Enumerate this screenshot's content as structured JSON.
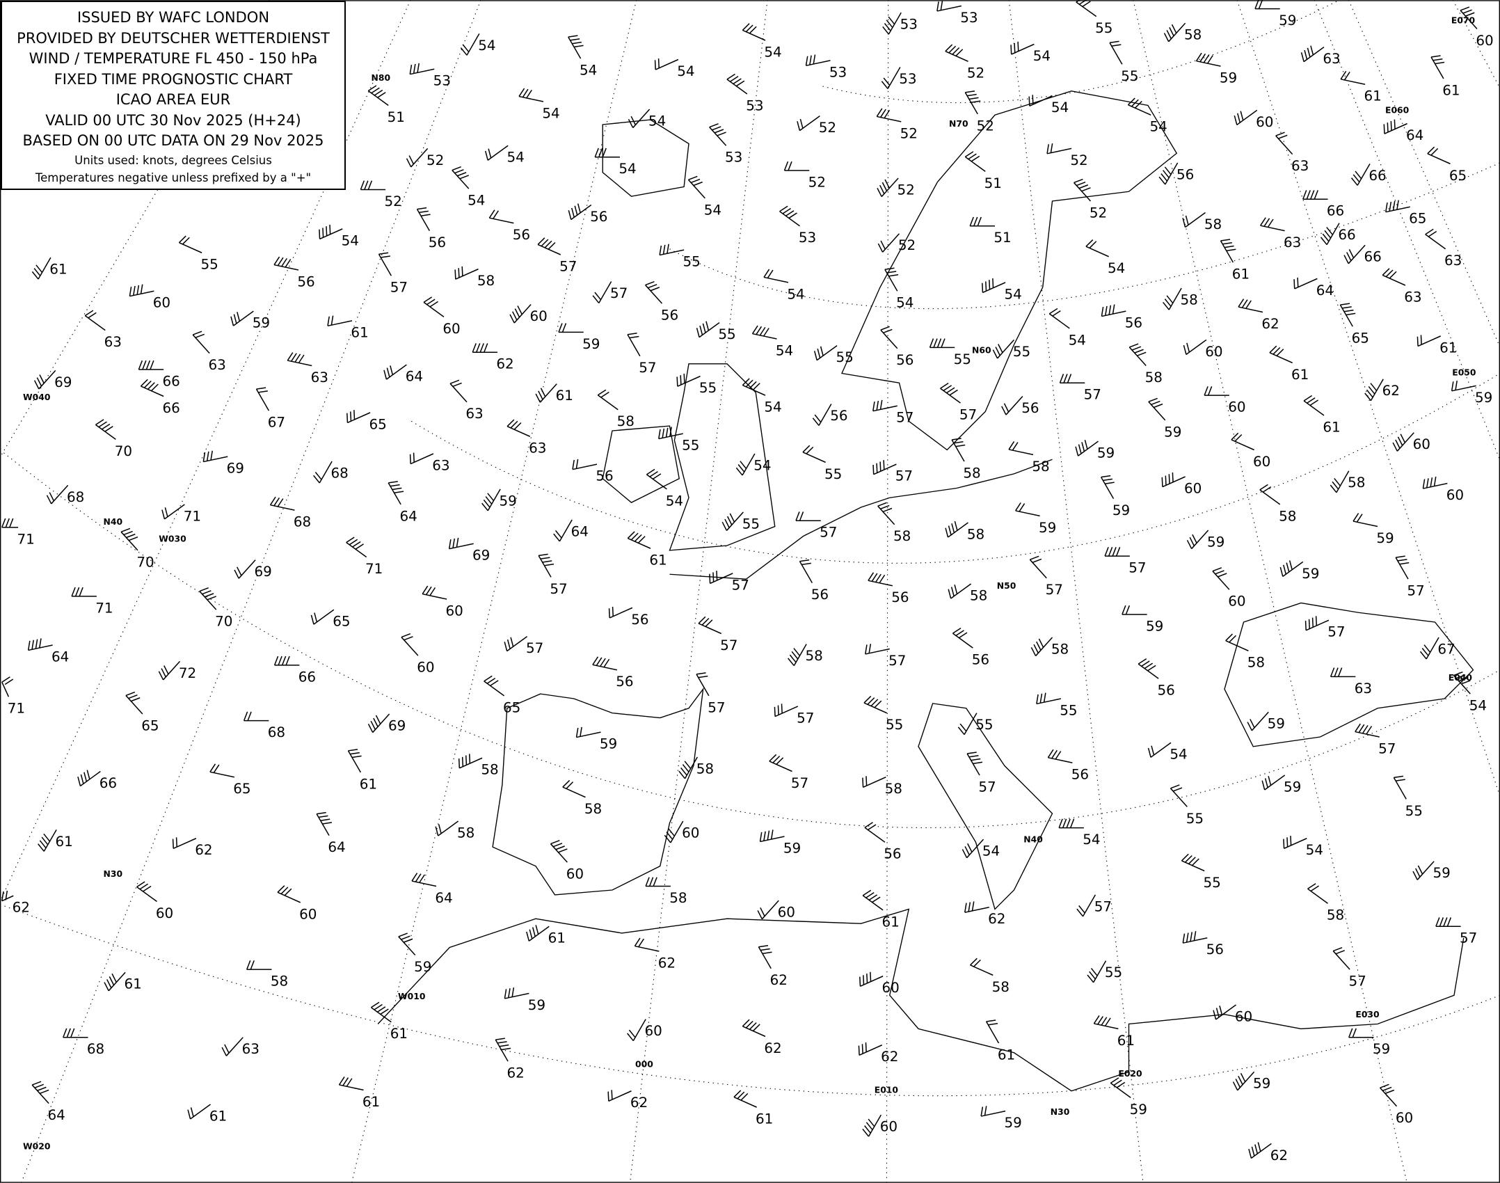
{
  "legend": {
    "lines": [
      "ISSUED BY WAFC LONDON",
      "PROVIDED BY DEUTSCHER WETTERDIENST",
      "WIND / TEMPERATURE FL 450 - 150 hPa",
      "FIXED TIME PROGNOSTIC CHART",
      "ICAO AREA EUR",
      "VALID 00 UTC 30 Nov 2025 (H+24)",
      "BASED ON 00 UTC DATA ON 29 Nov 2025"
    ],
    "units": "Units used: knots, degrees Celsius",
    "note": "Temperatures negative unless prefixed by a \"+\""
  },
  "grid_labels": [
    "W040",
    "N40",
    "W030",
    "N30",
    "W020",
    "W010",
    "000",
    "E010",
    "E020",
    "N30",
    "E030",
    "N50",
    "N60",
    "N70",
    "N40",
    "E040",
    "E050",
    "E060",
    "E070",
    "N80"
  ],
  "temperatures": [
    54,
    53,
    51,
    52,
    52,
    54,
    54,
    54,
    54,
    54,
    54,
    53,
    53,
    55,
    58,
    59,
    60,
    63,
    61,
    61,
    64,
    65,
    66,
    65,
    63,
    66,
    66,
    63,
    60,
    59,
    55,
    54,
    52,
    53,
    53,
    53,
    54,
    54,
    53,
    52,
    52,
    52,
    54,
    54,
    56,
    52,
    51,
    52,
    52,
    54,
    56,
    56,
    56,
    54,
    55,
    61,
    60,
    63,
    69,
    66,
    63,
    59,
    56,
    57,
    58,
    57,
    57,
    55,
    53,
    52,
    51,
    52,
    58,
    63,
    61,
    64,
    63,
    66,
    61,
    60,
    60,
    59,
    56,
    55,
    54,
    54,
    54,
    54,
    58,
    56,
    54,
    55,
    55,
    56,
    55,
    54,
    57,
    55,
    54,
    56,
    57,
    57,
    56,
    57,
    58,
    60,
    62,
    65,
    61,
    61,
    62,
    59,
    61,
    60,
    60,
    59,
    59,
    58,
    58,
    57,
    55,
    54,
    55,
    58,
    61,
    62,
    63,
    64,
    63,
    67,
    65,
    66,
    68,
    69,
    70,
    68,
    71,
    70,
    71,
    68,
    64,
    63,
    63,
    59,
    56,
    54,
    55,
    57,
    58,
    58,
    59,
    59,
    60,
    60,
    58,
    60,
    58,
    59,
    57,
    57,
    58,
    56,
    56,
    57,
    61,
    64,
    69,
    71,
    69,
    71,
    70,
    65,
    60,
    57,
    56,
    57,
    58,
    57,
    56,
    58,
    59,
    60,
    59,
    59,
    57,
    57,
    58,
    67,
    64,
    71,
    72,
    66,
    60,
    57,
    56,
    57,
    57,
    55,
    55,
    55,
    56,
    59,
    63,
    54,
    54,
    56,
    57,
    58,
    57,
    58,
    59,
    65,
    69,
    68,
    65,
    66,
    65,
    61,
    58,
    58,
    60,
    59,
    56,
    54,
    54,
    55,
    59,
    57,
    55,
    54,
    55,
    57,
    62,
    61,
    60,
    58,
    60,
    58,
    64,
    64,
    62,
    60,
    61,
    62,
    60,
    61,
    58,
    59,
    61,
    62,
    62,
    60,
    58,
    55,
    56,
    58,
    59,
    57,
    57,
    60,
    61,
    61,
    62,
    62,
    60,
    59,
    61,
    63,
    68,
    64,
    61,
    61,
    62,
    62,
    61,
    60,
    59,
    59,
    59,
    59,
    60,
    62
  ],
  "colors": {
    "ink": "#000000",
    "background": "#ffffff"
  },
  "symbols": {
    "wind": "wind-barb-icon",
    "strong_wind": "pennant-barb-icon"
  }
}
